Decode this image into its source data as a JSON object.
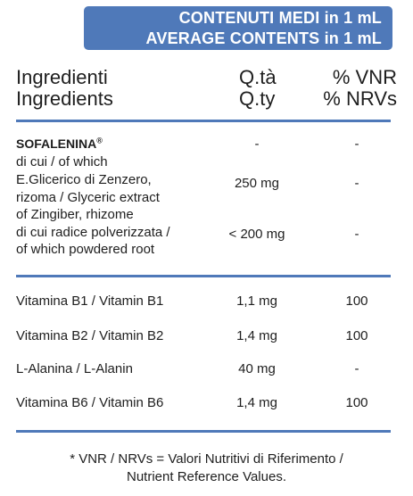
{
  "banner": {
    "line1": "CONTENUTI MEDI in 1 mL",
    "line2": "AVERAGE CONTENTS in 1 mL"
  },
  "header": {
    "ingredients_it": "Ingredienti",
    "ingredients_en": "Ingredients",
    "qty_it": "Q.tà",
    "qty_en": "Q.ty",
    "vnr_it": "% VNR",
    "vnr_en": "% NRVs"
  },
  "sofalenina": {
    "name": "SOFALENINA",
    "mark": "®",
    "qty": "-",
    "vnr": "-",
    "sub1": "di cui / of which",
    "ginger_lines": [
      "E.Glicerico di Zenzero,",
      "rizoma / Glyceric extract",
      "of Zingiber, rhizome"
    ],
    "ginger_qty": "250 mg",
    "ginger_vnr": "-",
    "root_lines": [
      "di cui radice polverizzata /",
      "of which powdered root"
    ],
    "root_qty": "< 200 mg",
    "root_vnr": "-"
  },
  "rows": [
    {
      "name": "Vitamina B1 / Vitamin B1",
      "qty": "1,1 mg",
      "vnr": "100"
    },
    {
      "name": "Vitamina B2 / Vitamin B2",
      "qty": "1,4 mg",
      "vnr": "100"
    },
    {
      "name": "L-Alanina / L-Alanin",
      "qty": "40 mg",
      "vnr": "-"
    },
    {
      "name": "Vitamina B6 / Vitamin B6",
      "qty": "1,4 mg",
      "vnr": "100"
    }
  ],
  "footnote": {
    "line1": "* VNR / NRVs = Valori Nutritivi di Riferimento /",
    "line2": "Nutrient Reference Values."
  }
}
